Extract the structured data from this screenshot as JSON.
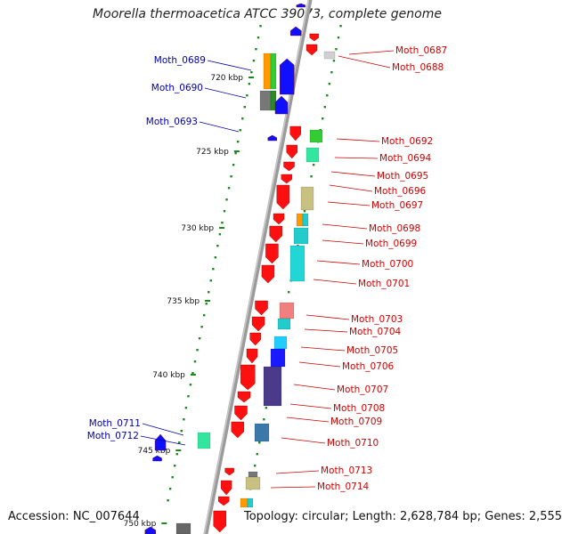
{
  "title": "Moorella thermoacetica ATCC 39073, complete genome",
  "accession": "Accession: NC_007644",
  "summary": "Topology: circular; Length: 2,628,784 bp; Genes: 2,555",
  "colors": {
    "backbone": "#9a9a9a",
    "forward_strand": "#1010ff",
    "reverse_strand": "#ff1010",
    "left_label": "#0000b0",
    "right_label": "#d00000",
    "dots": "#1a8a1a"
  },
  "kbp_ticks": [
    "720 kbp",
    "725 kbp",
    "730 kbp",
    "735 kbp",
    "740 kbp",
    "745 kbp",
    "750 kbp"
  ],
  "left_labels": [
    "Moth_0689",
    "Moth_0690",
    "Moth_0693",
    "Moth_0711",
    "Moth_0712"
  ],
  "right_labels": [
    "Moth_0687",
    "Moth_0688",
    "Moth_0692",
    "Moth_0694",
    "Moth_0695",
    "Moth_0696",
    "Moth_0697",
    "Moth_0698",
    "Moth_0699",
    "Moth_0700",
    "Moth_0701",
    "Moth_0703",
    "Moth_0704",
    "Moth_0705",
    "Moth_0706",
    "Moth_0707",
    "Moth_0708",
    "Moth_0709",
    "Moth_0710",
    "Moth_0713",
    "Moth_0714"
  ]
}
